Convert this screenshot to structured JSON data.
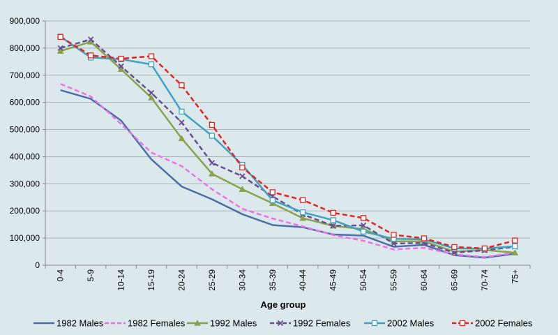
{
  "chart_data": {
    "type": "line",
    "title": "",
    "xlabel": "Age group",
    "ylabel": "",
    "ylim": [
      0,
      900000
    ],
    "yticks": [
      "0",
      "100,000",
      "200,000",
      "300,000",
      "400,000",
      "500,000",
      "600,000",
      "700,000",
      "800,000",
      "900,000"
    ],
    "ytick_values": [
      0,
      100000,
      200000,
      300000,
      400000,
      500000,
      600000,
      700000,
      800000,
      900000
    ],
    "categories": [
      "0-4",
      "5-9",
      "10-14",
      "15-19",
      "20-24",
      "25-29",
      "30-34",
      "35-39",
      "40-44",
      "45-49",
      "50-54",
      "55-59",
      "60-64",
      "65-69",
      "70-74",
      "75+"
    ],
    "grid": "horizontal",
    "legend_position": "bottom",
    "series": [
      {
        "name": "1982 Males",
        "color": "#4a6fa5",
        "dash": "solid",
        "marker": "none",
        "values": [
          645000,
          613000,
          533000,
          390000,
          290000,
          243000,
          188000,
          148000,
          140000,
          113000,
          109000,
          68000,
          75000,
          37000,
          28000,
          42000
        ]
      },
      {
        "name": "1982 Females",
        "color": "#f26fe8",
        "dash": "dashed",
        "marker": "none",
        "values": [
          668000,
          622000,
          520000,
          415000,
          365000,
          280000,
          208000,
          172000,
          143000,
          111000,
          90000,
          58000,
          64000,
          40000,
          30000,
          46000
        ]
      },
      {
        "name": "1992 Males",
        "color": "#8aa34a",
        "dash": "solid",
        "marker": "triangle",
        "values": [
          789000,
          823000,
          722000,
          617000,
          467000,
          337000,
          280000,
          228000,
          173000,
          145000,
          133000,
          88000,
          88000,
          50000,
          56000,
          46000
        ]
      },
      {
        "name": "1992 Females",
        "color": "#6a4c93",
        "dash": "dashed",
        "marker": "x",
        "values": [
          800000,
          832000,
          733000,
          635000,
          526000,
          377000,
          328000,
          254000,
          187000,
          145000,
          147000,
          80000,
          82000,
          46000,
          55000,
          68000
        ]
      },
      {
        "name": "2002 Males",
        "color": "#3fa3c0",
        "dash": "solid",
        "marker": "square",
        "values": [
          842000,
          765000,
          759000,
          740000,
          566000,
          477000,
          370000,
          239000,
          195000,
          166000,
          124000,
          97000,
          95000,
          62000,
          61000,
          70000
        ]
      },
      {
        "name": "2002 Females",
        "color": "#e8221e",
        "dash": "dashed",
        "marker": "square",
        "values": [
          841000,
          773000,
          761000,
          770000,
          663000,
          517000,
          360000,
          269000,
          240000,
          193000,
          174000,
          112000,
          99000,
          67000,
          62000,
          91000
        ]
      }
    ]
  }
}
